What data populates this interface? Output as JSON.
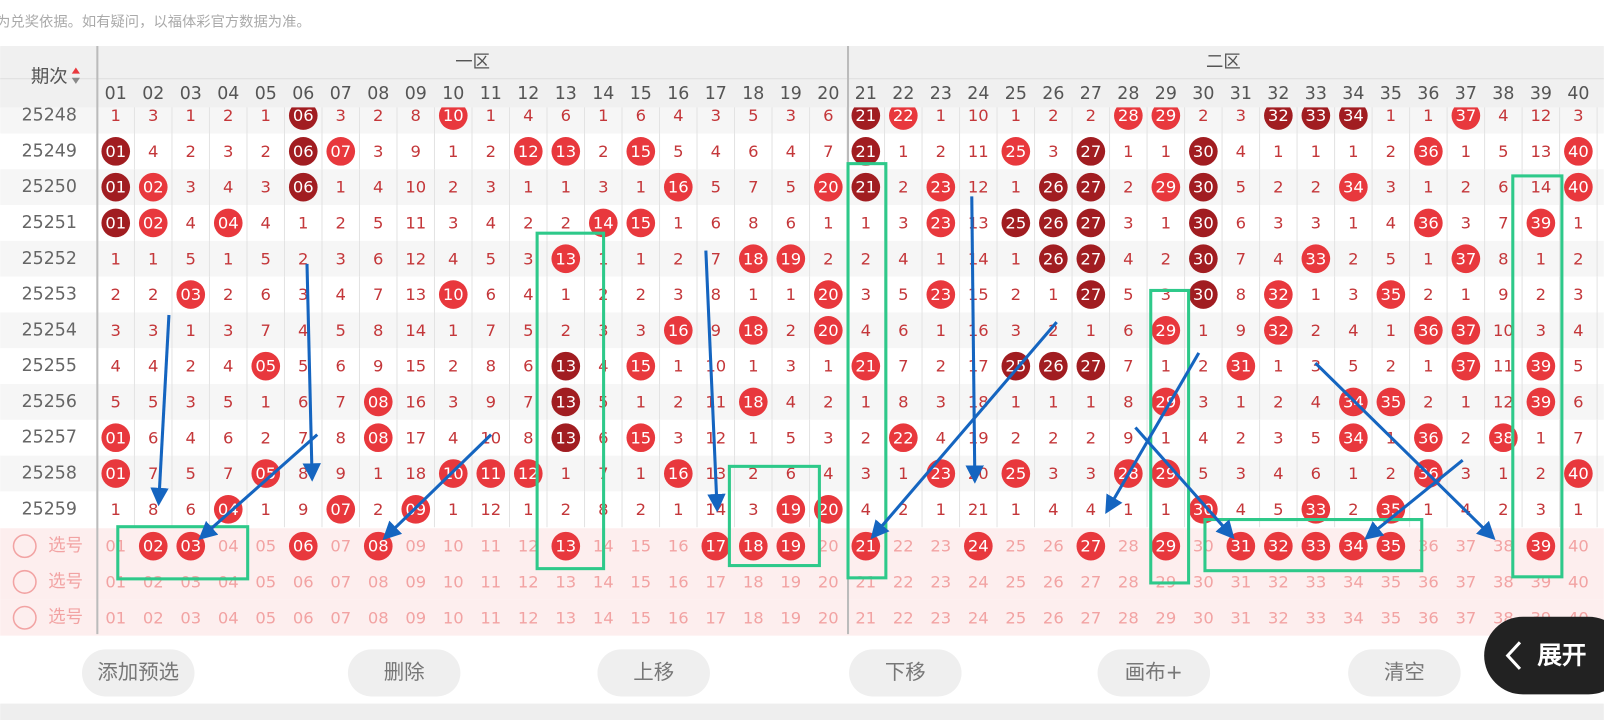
{
  "notice": "注：开奖结果来源于网络，仅供参考不作为兑奖依据。如有疑问，以福体彩官方数据为准。",
  "header": {
    "period_label": "期次",
    "zone1": "一区",
    "zone2": "二区",
    "columns": [
      "01",
      "02",
      "03",
      "04",
      "05",
      "06",
      "07",
      "08",
      "09",
      "10",
      "11",
      "12",
      "13",
      "14",
      "15",
      "16",
      "17",
      "18",
      "19",
      "20",
      "21",
      "22",
      "23",
      "24",
      "25",
      "26",
      "27",
      "28",
      "29",
      "30",
      "31",
      "32",
      "33",
      "34",
      "35",
      "36",
      "37",
      "38",
      "39",
      "40"
    ]
  },
  "colors": {
    "ball": "#e8383d",
    "dark": "#a11d21",
    "miss": "#c4373a",
    "pick": "#f2a3a3"
  },
  "rows": [
    {
      "period": "25248",
      "cells": [
        "1",
        "3",
        "1",
        "2",
        "1",
        "06",
        "3",
        "2",
        "8",
        "10",
        "1",
        "4",
        "6",
        "1",
        "6",
        "4",
        "3",
        "5",
        "3",
        "6",
        "21",
        "22",
        "1",
        "10",
        "1",
        "2",
        "2",
        "28",
        "29",
        "2",
        "3",
        "32",
        "33",
        "34",
        "1",
        "1",
        "37",
        "4",
        "12",
        "3"
      ],
      "dark": [
        "06",
        "21",
        "32",
        "33",
        "34"
      ]
    },
    {
      "period": "25249",
      "cells": [
        "01",
        "4",
        "2",
        "3",
        "2",
        "06",
        "07",
        "3",
        "9",
        "1",
        "2",
        "12",
        "13",
        "2",
        "15",
        "5",
        "4",
        "6",
        "4",
        "7",
        "21",
        "1",
        "2",
        "11",
        "25",
        "3",
        "27",
        "1",
        "1",
        "30",
        "4",
        "1",
        "1",
        "1",
        "2",
        "36",
        "1",
        "5",
        "13",
        "40"
      ],
      "dark": [
        "01",
        "06",
        "21",
        "27",
        "30"
      ]
    },
    {
      "period": "25250",
      "cells": [
        "01",
        "02",
        "3",
        "4",
        "3",
        "06",
        "1",
        "4",
        "10",
        "2",
        "3",
        "1",
        "1",
        "3",
        "1",
        "16",
        "5",
        "7",
        "5",
        "20",
        "21",
        "2",
        "23",
        "12",
        "1",
        "26",
        "27",
        "2",
        "29",
        "30",
        "5",
        "2",
        "2",
        "34",
        "3",
        "1",
        "2",
        "6",
        "14",
        "40"
      ],
      "dark": [
        "01",
        "06",
        "21",
        "26",
        "27",
        "30"
      ]
    },
    {
      "period": "25251",
      "cells": [
        "01",
        "02",
        "4",
        "04",
        "4",
        "1",
        "2",
        "5",
        "11",
        "3",
        "4",
        "2",
        "2",
        "14",
        "15",
        "1",
        "6",
        "8",
        "6",
        "1",
        "1",
        "3",
        "23",
        "13",
        "25",
        "26",
        "27",
        "3",
        "1",
        "30",
        "6",
        "3",
        "3",
        "1",
        "4",
        "36",
        "3",
        "7",
        "39",
        "1"
      ],
      "dark": [
        "01",
        "25",
        "26",
        "27",
        "30"
      ]
    },
    {
      "period": "25252",
      "cells": [
        "1",
        "1",
        "5",
        "1",
        "5",
        "2",
        "3",
        "6",
        "12",
        "4",
        "5",
        "3",
        "13",
        "1",
        "1",
        "2",
        "7",
        "18",
        "19",
        "2",
        "2",
        "4",
        "1",
        "14",
        "1",
        "26",
        "27",
        "4",
        "2",
        "30",
        "7",
        "4",
        "33",
        "2",
        "5",
        "1",
        "37",
        "8",
        "1",
        "2"
      ],
      "dark": [
        "26",
        "27",
        "30"
      ]
    },
    {
      "period": "25253",
      "cells": [
        "2",
        "2",
        "03",
        "2",
        "6",
        "3",
        "4",
        "7",
        "13",
        "10",
        "6",
        "4",
        "1",
        "2",
        "2",
        "3",
        "8",
        "1",
        "1",
        "20",
        "3",
        "5",
        "23",
        "15",
        "2",
        "1",
        "27",
        "5",
        "3",
        "30",
        "8",
        "32",
        "1",
        "3",
        "35",
        "2",
        "1",
        "9",
        "2",
        "3"
      ],
      "dark": [
        "27",
        "30"
      ]
    },
    {
      "period": "25254",
      "cells": [
        "3",
        "3",
        "1",
        "3",
        "7",
        "4",
        "5",
        "8",
        "14",
        "1",
        "7",
        "5",
        "2",
        "3",
        "3",
        "16",
        "9",
        "18",
        "2",
        "20",
        "4",
        "6",
        "1",
        "16",
        "3",
        "2",
        "1",
        "6",
        "29",
        "1",
        "9",
        "32",
        "2",
        "4",
        "1",
        "36",
        "37",
        "10",
        "3",
        "4"
      ],
      "dark": []
    },
    {
      "period": "25255",
      "cells": [
        "4",
        "4",
        "2",
        "4",
        "05",
        "5",
        "6",
        "9",
        "15",
        "2",
        "8",
        "6",
        "13",
        "4",
        "15",
        "1",
        "10",
        "1",
        "3",
        "1",
        "21",
        "7",
        "2",
        "17",
        "25",
        "26",
        "27",
        "7",
        "1",
        "2",
        "31",
        "1",
        "3",
        "5",
        "2",
        "1",
        "37",
        "11",
        "39",
        "5"
      ],
      "dark": [
        "13",
        "25",
        "26",
        "27"
      ]
    },
    {
      "period": "25256",
      "cells": [
        "5",
        "5",
        "3",
        "5",
        "1",
        "6",
        "7",
        "08",
        "16",
        "3",
        "9",
        "7",
        "13",
        "5",
        "1",
        "2",
        "11",
        "18",
        "4",
        "2",
        "1",
        "8",
        "3",
        "18",
        "1",
        "1",
        "1",
        "8",
        "29",
        "3",
        "1",
        "2",
        "4",
        "34",
        "35",
        "2",
        "1",
        "12",
        "39",
        "6"
      ],
      "dark": [
        "13"
      ]
    },
    {
      "period": "25257",
      "cells": [
        "01",
        "6",
        "4",
        "6",
        "2",
        "7",
        "8",
        "08",
        "17",
        "4",
        "10",
        "8",
        "13",
        "6",
        "15",
        "3",
        "12",
        "1",
        "5",
        "3",
        "2",
        "22",
        "4",
        "19",
        "2",
        "2",
        "2",
        "9",
        "1",
        "4",
        "2",
        "3",
        "5",
        "34",
        "1",
        "36",
        "2",
        "38",
        "1",
        "7"
      ],
      "dark": [
        "13"
      ]
    },
    {
      "period": "25258",
      "cells": [
        "01",
        "7",
        "5",
        "7",
        "05",
        "8",
        "9",
        "1",
        "18",
        "10",
        "11",
        "12",
        "1",
        "7",
        "1",
        "16",
        "13",
        "2",
        "6",
        "4",
        "3",
        "1",
        "23",
        "20",
        "25",
        "3",
        "3",
        "28",
        "29",
        "5",
        "3",
        "4",
        "6",
        "1",
        "2",
        "36",
        "3",
        "1",
        "2",
        "40"
      ],
      "dark": []
    },
    {
      "period": "25259",
      "cells": [
        "1",
        "8",
        "6",
        "04",
        "1",
        "9",
        "07",
        "2",
        "09",
        "1",
        "12",
        "1",
        "2",
        "8",
        "2",
        "1",
        "14",
        "3",
        "19",
        "20",
        "4",
        "2",
        "1",
        "21",
        "1",
        "4",
        "4",
        "1",
        "1",
        "30",
        "4",
        "5",
        "33",
        "2",
        "35",
        "1",
        "4",
        "2",
        "3",
        "1"
      ],
      "dark": []
    }
  ],
  "select_rows": [
    {
      "label": "选号",
      "picked": [
        "02",
        "03",
        "06",
        "08",
        "13",
        "17",
        "18",
        "19",
        "21",
        "24",
        "27",
        "29",
        "31",
        "32",
        "33",
        "34",
        "35",
        "39"
      ]
    },
    {
      "label": "选号",
      "picked": []
    },
    {
      "label": "选号",
      "picked": []
    }
  ],
  "buttons": [
    "添加预选",
    "删除",
    "上移",
    "下移",
    "画布+",
    "清空"
  ],
  "expand": "展开"
}
